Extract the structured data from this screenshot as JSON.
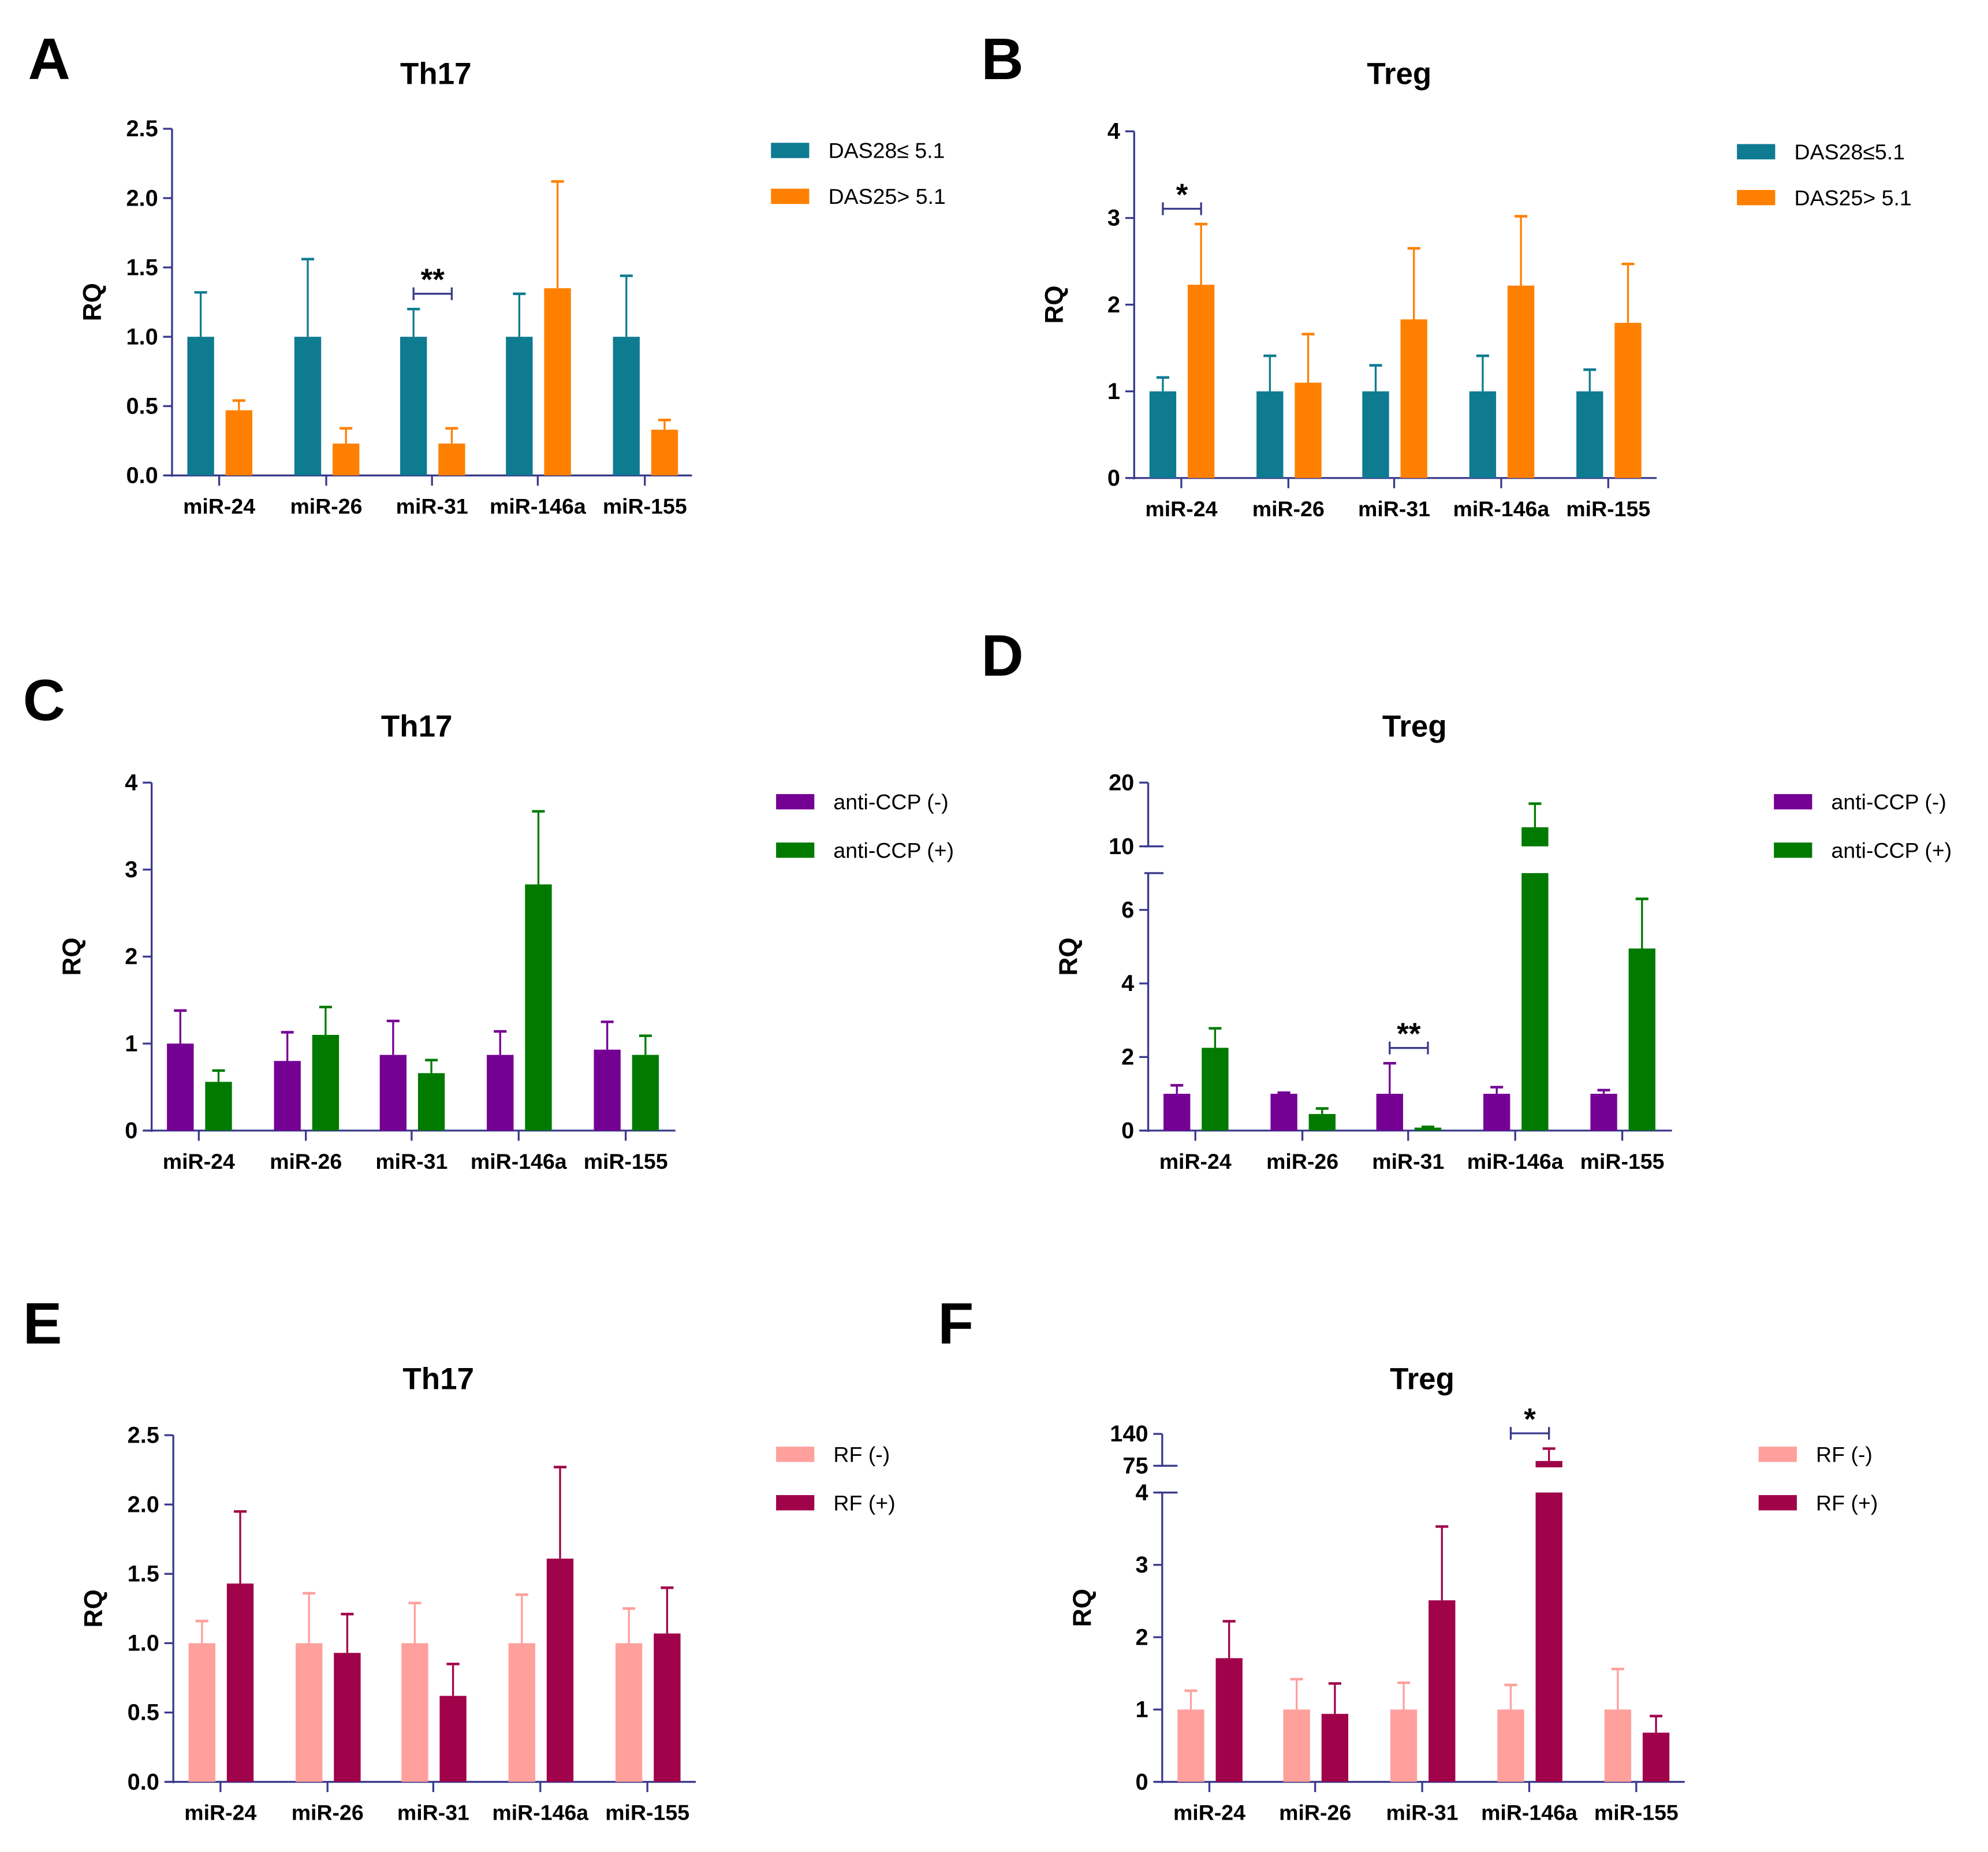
{
  "chart_data": [
    {
      "panel": "A",
      "type": "bar",
      "title": "Th17",
      "ylabel": "RQ",
      "categories": [
        "miR-24",
        "miR-26",
        "miR-31",
        "miR-146a",
        "miR-155"
      ],
      "ylim": [
        0,
        2.5
      ],
      "yticks": [
        0.0,
        0.5,
        1.0,
        1.5,
        2.0,
        2.5
      ],
      "tick_labels": [
        "0.0",
        "0.5",
        "1.0",
        "1.5",
        "2.0",
        "2.5"
      ],
      "series": [
        {
          "name": "DAS28≤ 5.1",
          "color": "#0e7b91",
          "values": [
            1,
            1,
            1,
            1,
            1
          ],
          "error_upper": [
            1.32,
            1.56,
            1.2,
            1.31,
            1.44
          ]
        },
        {
          "name": "DAS25> 5.1",
          "color": "#ff8000",
          "values": [
            0.47,
            0.23,
            0.23,
            1.35,
            0.33
          ],
          "error_upper": [
            0.54,
            0.34,
            0.34,
            2.12,
            0.4
          ]
        }
      ],
      "significance": [
        {
          "category": 2,
          "label": "**"
        }
      ]
    },
    {
      "panel": "B",
      "type": "bar",
      "title": "Treg",
      "ylabel": "RQ",
      "categories": [
        "miR-24",
        "miR-26",
        "miR-31",
        "miR-146a",
        "miR-155"
      ],
      "ylim": [
        0,
        4
      ],
      "yticks": [
        0,
        1,
        2,
        3,
        4
      ],
      "tick_labels": [
        "0",
        "1",
        "2",
        "3",
        "4"
      ],
      "series": [
        {
          "name": "DAS28≤5.1",
          "color": "#0e7b91",
          "values": [
            1,
            1,
            1,
            1,
            1
          ],
          "error_upper": [
            1.16,
            1.41,
            1.3,
            1.41,
            1.25
          ]
        },
        {
          "name": "DAS25> 5.1",
          "color": "#ff8000",
          "values": [
            2.23,
            1.1,
            1.83,
            2.22,
            1.79
          ],
          "error_upper": [
            2.93,
            1.66,
            2.65,
            3.02,
            2.47
          ]
        }
      ],
      "significance": [
        {
          "category": 0,
          "label": "*"
        }
      ]
    },
    {
      "panel": "C",
      "type": "bar",
      "title": "Th17",
      "ylabel": "RQ",
      "categories": [
        "miR-24",
        "miR-26",
        "miR-31",
        "miR-146a",
        "miR-155"
      ],
      "ylim": [
        0,
        4
      ],
      "yticks": [
        0,
        1,
        2,
        3,
        4
      ],
      "tick_labels": [
        "0",
        "1",
        "2",
        "3",
        "4"
      ],
      "series": [
        {
          "name": "anti-CCP (-)",
          "color": "#750094",
          "values": [
            1,
            0.8,
            0.87,
            0.87,
            0.93
          ],
          "error_upper": [
            1.38,
            1.13,
            1.26,
            1.14,
            1.25
          ]
        },
        {
          "name": "anti-CCP (+)",
          "color": "#007a00",
          "values": [
            0.56,
            1.1,
            0.66,
            2.83,
            0.87
          ],
          "error_upper": [
            0.69,
            1.42,
            0.81,
            3.67,
            1.09
          ]
        }
      ],
      "significance": []
    },
    {
      "panel": "D",
      "type": "bar",
      "title": "Treg",
      "ylabel": "RQ",
      "categories": [
        "miR-24",
        "miR-26",
        "miR-31",
        "miR-146a",
        "miR-155"
      ],
      "ylim": [
        0,
        20
      ],
      "axis_break": [
        7,
        10
      ],
      "yticks": [
        0,
        2,
        4,
        6,
        10,
        20
      ],
      "tick_labels": [
        "0",
        "2",
        "4",
        "6",
        "10",
        "20"
      ],
      "series": [
        {
          "name": "anti-CCP (-)",
          "color": "#750094",
          "values": [
            1,
            1,
            1,
            1,
            1
          ],
          "error_upper": [
            1.23,
            1.03,
            1.83,
            1.18,
            1.1
          ]
        },
        {
          "name": "anti-CCP (+)",
          "color": "#007a00",
          "values": [
            2.25,
            0.45,
            0.08,
            13,
            4.95
          ],
          "error_upper": [
            2.78,
            0.6,
            0.1,
            16.7,
            6.3
          ]
        }
      ],
      "significance": [
        {
          "category": 2,
          "label": "**"
        }
      ]
    },
    {
      "panel": "E",
      "type": "bar",
      "title": "Th17",
      "ylabel": "RQ",
      "categories": [
        "miR-24",
        "miR-26",
        "miR-31",
        "miR-146a",
        "miR-155"
      ],
      "ylim": [
        0,
        2.5
      ],
      "yticks": [
        0.0,
        0.5,
        1.0,
        1.5,
        2.0,
        2.5
      ],
      "tick_labels": [
        "0.0",
        "0.5",
        "1.0",
        "1.5",
        "2.0",
        "2.5"
      ],
      "series": [
        {
          "name": "RF (-)",
          "color": "#ffa09c",
          "values": [
            1,
            1,
            1,
            1,
            1
          ],
          "error_upper": [
            1.16,
            1.36,
            1.29,
            1.35,
            1.25
          ]
        },
        {
          "name": "RF (+)",
          "color": "#a0034a",
          "values": [
            1.43,
            0.93,
            0.62,
            1.61,
            1.07
          ],
          "error_upper": [
            1.95,
            1.21,
            0.85,
            2.27,
            1.4
          ]
        }
      ],
      "significance": []
    },
    {
      "panel": "F",
      "type": "bar",
      "title": "Treg",
      "ylabel": "RQ",
      "categories": [
        "miR-24",
        "miR-26",
        "miR-31",
        "miR-146a",
        "miR-155"
      ],
      "ylim": [
        0,
        140
      ],
      "axis_break": [
        4,
        75
      ],
      "yticks": [
        0,
        1,
        2,
        3,
        4,
        75,
        140
      ],
      "tick_labels": [
        "0",
        "1",
        "2",
        "3",
        "4",
        "75",
        "140"
      ],
      "series": [
        {
          "name": "RF (-)",
          "color": "#ffa09c",
          "values": [
            1,
            1,
            1,
            1,
            1
          ],
          "error_upper": [
            1.26,
            1.42,
            1.37,
            1.34,
            1.56
          ]
        },
        {
          "name": "RF (+)",
          "color": "#a0034a",
          "values": [
            1.71,
            0.94,
            2.51,
            77,
            0.68
          ],
          "error_upper": [
            2.22,
            1.36,
            3.53,
            110,
            0.91
          ]
        }
      ],
      "significance": [
        {
          "category": 3,
          "label": "*"
        }
      ]
    }
  ],
  "axis_color": "#3a3a8c"
}
